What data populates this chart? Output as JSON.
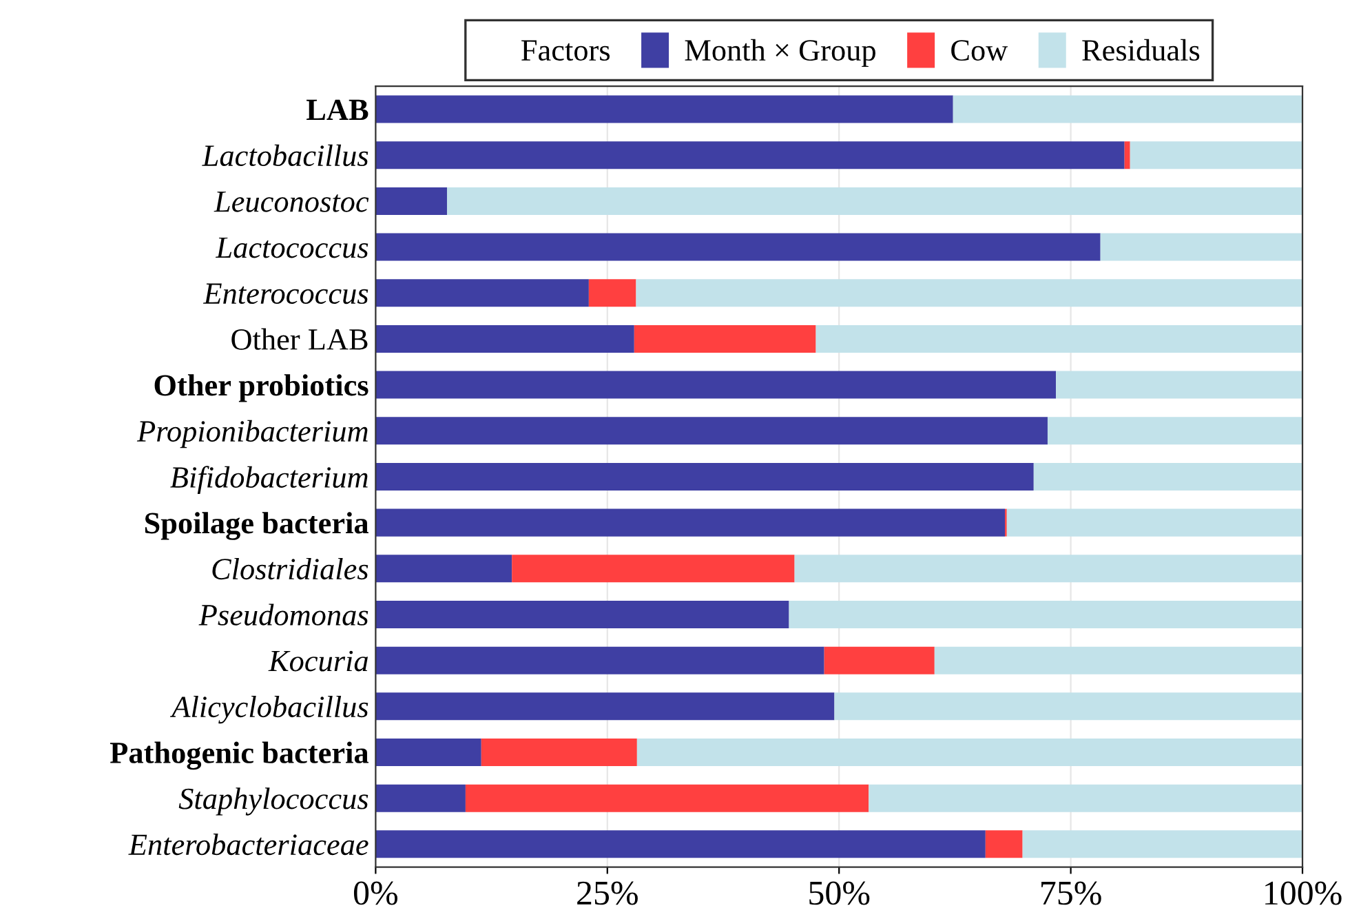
{
  "chart_data": {
    "type": "bar",
    "orientation": "horizontal",
    "stacked": true,
    "legend_title": "Factors",
    "legend": "top",
    "categories": [
      "LAB",
      "Lactobacillus",
      "Leuconostoc",
      "Lactococcus",
      "Enterococcus",
      "Other LAB",
      "Other probiotics",
      "Propionibacterium",
      "Bifidobacterium",
      "Spoilage bacteria",
      "Clostridiales",
      "Pseudomonas",
      "Kocuria",
      "Alicyclobacillus",
      "Pathogenic bacteria",
      "Staphylococcus",
      "Enterobacteriaceae"
    ],
    "series": [
      {
        "name": "Month × Group",
        "color": "#3f3fa3",
        "values": [
          62.3,
          80.8,
          7.7,
          78.2,
          23.0,
          27.9,
          73.4,
          72.5,
          71.0,
          67.9,
          14.7,
          44.6,
          48.4,
          49.5,
          11.4,
          9.7,
          65.8
        ]
      },
      {
        "name": "Cow",
        "color": "#ff4040",
        "values": [
          0,
          0.6,
          0,
          0,
          5.1,
          19.6,
          0,
          0,
          0,
          0.2,
          30.5,
          0,
          11.9,
          0,
          16.8,
          43.5,
          4.0
        ]
      },
      {
        "name": "Residuals",
        "color": "#c2e2ea",
        "values": [
          37.7,
          18.6,
          92.3,
          21.8,
          71.9,
          52.5,
          26.6,
          27.5,
          29.0,
          31.9,
          54.8,
          55.4,
          39.7,
          50.5,
          71.8,
          46.8,
          30.2
        ]
      }
    ],
    "xlim": [
      0,
      100
    ],
    "xticks": [
      {
        "value": 0,
        "label": "0%"
      },
      {
        "value": 25,
        "label": "25%"
      },
      {
        "value": 50,
        "label": "50%"
      },
      {
        "value": 75,
        "label": "75%"
      },
      {
        "value": 100,
        "label": "100%"
      }
    ],
    "grid": "x"
  }
}
